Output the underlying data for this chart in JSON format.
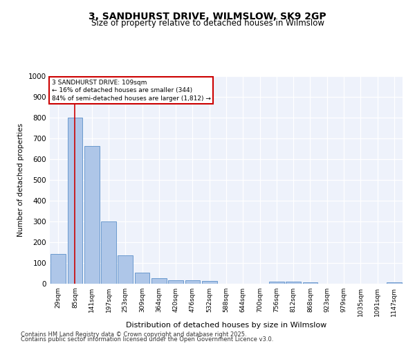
{
  "title_line1": "3, SANDHURST DRIVE, WILMSLOW, SK9 2GP",
  "title_line2": "Size of property relative to detached houses in Wilmslow",
  "xlabel": "Distribution of detached houses by size in Wilmslow",
  "ylabel": "Number of detached properties",
  "bar_labels": [
    "29sqm",
    "85sqm",
    "141sqm",
    "197sqm",
    "253sqm",
    "309sqm",
    "364sqm",
    "420sqm",
    "476sqm",
    "532sqm",
    "588sqm",
    "644sqm",
    "700sqm",
    "756sqm",
    "812sqm",
    "868sqm",
    "923sqm",
    "979sqm",
    "1035sqm",
    "1091sqm",
    "1147sqm"
  ],
  "bar_values": [
    145,
    800,
    665,
    300,
    138,
    52,
    27,
    18,
    18,
    12,
    0,
    0,
    0,
    10,
    10,
    7,
    0,
    0,
    0,
    0,
    7
  ],
  "bar_color": "#aec6e8",
  "bar_edge_color": "#5b8fc9",
  "vline_x": 1.0,
  "vline_color": "#cc0000",
  "annotation_title": "3 SANDHURST DRIVE: 109sqm",
  "annotation_line2": "← 16% of detached houses are smaller (344)",
  "annotation_line3": "84% of semi-detached houses are larger (1,812) →",
  "annotation_box_color": "#cc0000",
  "ylim": [
    0,
    1000
  ],
  "yticks": [
    0,
    100,
    200,
    300,
    400,
    500,
    600,
    700,
    800,
    900,
    1000
  ],
  "bg_color": "#eef2fb",
  "footer_line1": "Contains HM Land Registry data © Crown copyright and database right 2025.",
  "footer_line2": "Contains public sector information licensed under the Open Government Licence v3.0."
}
